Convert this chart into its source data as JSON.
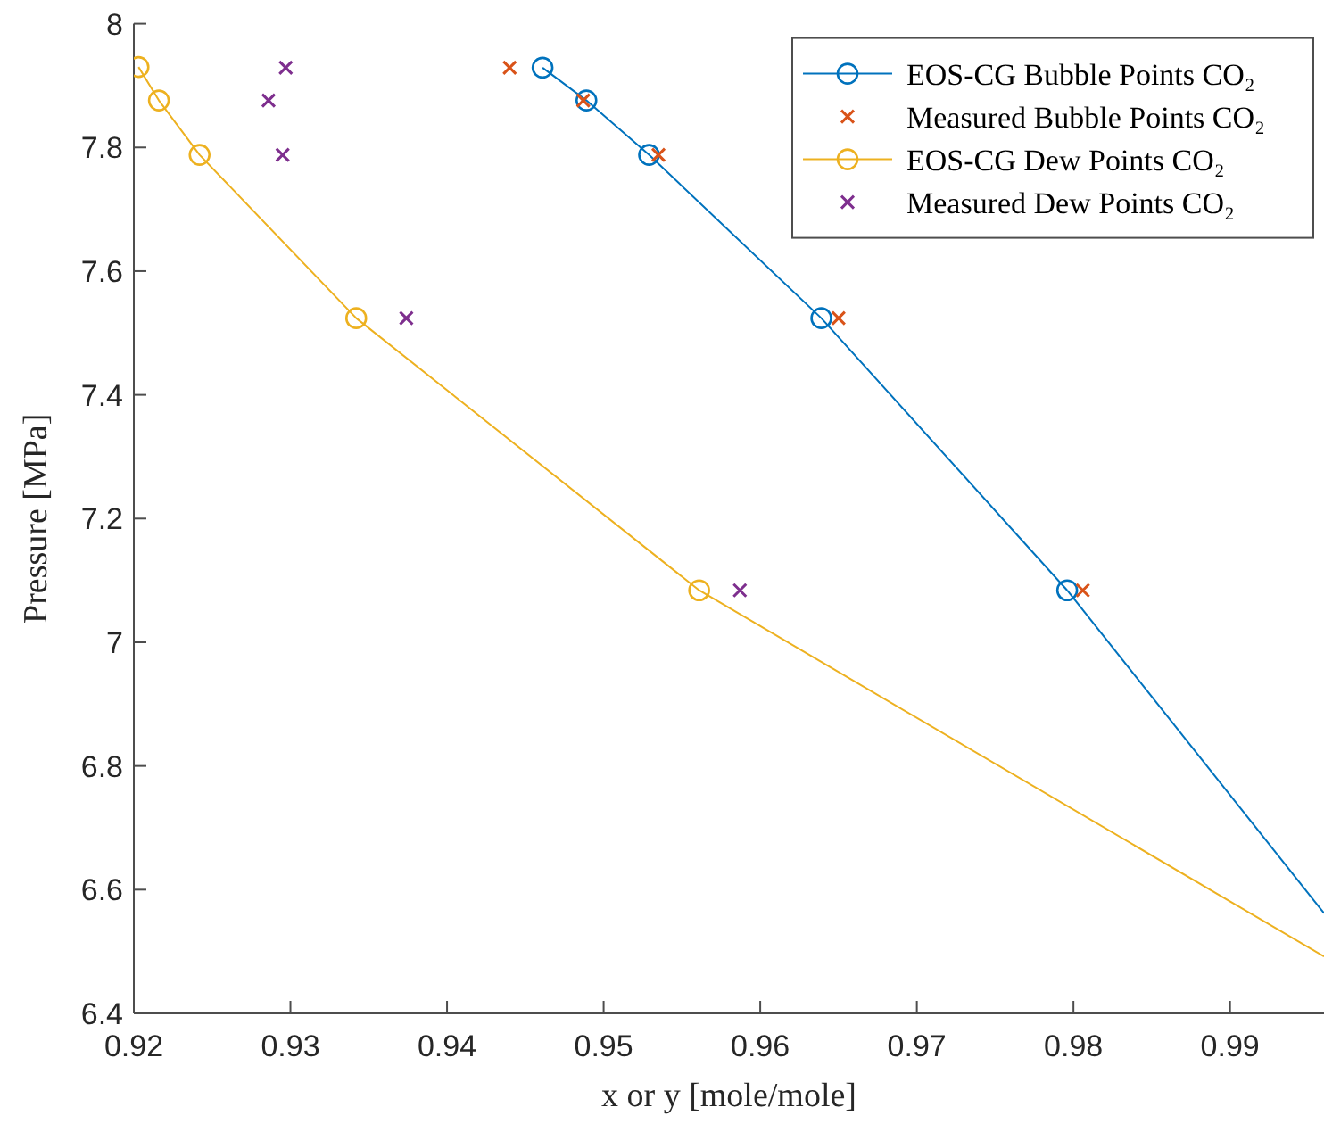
{
  "chart_data": {
    "type": "line",
    "xlabel": "x or y [mole/mole]",
    "ylabel": "Pressure [MPa]",
    "xlim": [
      0.92,
      0.996
    ],
    "ylim": [
      6.4,
      8
    ],
    "xticks": [
      0.92,
      0.93,
      0.94,
      0.95,
      0.96,
      0.97,
      0.98,
      0.99
    ],
    "yticks": [
      6.4,
      6.6,
      6.8,
      7,
      7.2,
      7.4,
      7.6,
      7.8,
      8
    ],
    "grid": false,
    "legend": "top right",
    "series": [
      {
        "name": "EOS-CG Bubble Points CO₂",
        "marker": "circle",
        "color": "#0072bd",
        "x": [
          0.9461,
          0.9489,
          0.9529,
          0.9639,
          0.9796
        ],
        "values": [
          7.929,
          7.876,
          7.788,
          7.524,
          7.084
        ]
      },
      {
        "name": "Measured Bubble Points CO₂",
        "type": "scatter",
        "marker": "cross",
        "color": "#d95319",
        "x": [
          0.944,
          0.9487,
          0.9535,
          0.965,
          0.9806
        ],
        "values": [
          7.929,
          7.876,
          7.788,
          7.524,
          7.084
        ]
      },
      {
        "name": "EOS-CG Dew Points CO₂",
        "marker": "circle",
        "color": "#edb120",
        "x": [
          0.9203,
          0.9216,
          0.9242,
          0.9342,
          0.9561
        ],
        "values": [
          7.93,
          7.876,
          7.788,
          7.524,
          7.084
        ]
      },
      {
        "name": "Measured Dew Points CO₂",
        "type": "scatter",
        "marker": "cross",
        "color": "#7e2f8e",
        "x": [
          0.9297,
          0.9286,
          0.9295,
          0.9374,
          0.9587
        ],
        "values": [
          7.929,
          7.876,
          7.788,
          7.524,
          7.084
        ]
      },
      {
        "marker": "none",
        "color": "#0072bd",
        "x": [
          0.9796,
          0.996
        ],
        "values": [
          7.084,
          6.562
        ]
      },
      {
        "marker": "none",
        "color": "#edb120",
        "x": [
          0.9561,
          0.996
        ],
        "values": [
          7.084,
          6.492
        ]
      }
    ]
  }
}
